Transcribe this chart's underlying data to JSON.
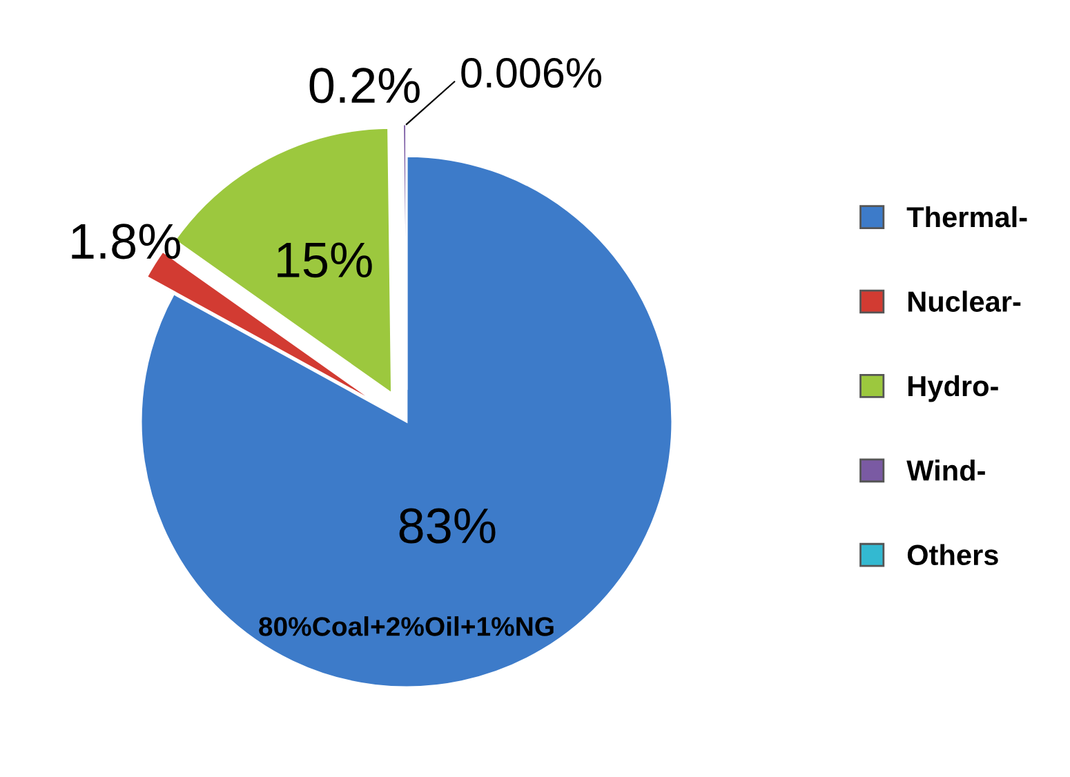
{
  "chart_data": {
    "type": "pie",
    "categories": [
      "Thermal-",
      "Nuclear-",
      "Hydro-",
      "Wind-",
      "Others"
    ],
    "values": [
      83,
      1.8,
      15,
      0.2,
      0.006
    ],
    "colors": [
      "#3d7bc9",
      "#d23b32",
      "#9cc83e",
      "#7a5aa3",
      "#33b9d1"
    ],
    "value_labels": [
      "83%",
      "1.8%",
      "15%",
      "0.2%",
      "0.006%"
    ],
    "annotations": [
      "80%Coal+2%Oil+1%NG"
    ],
    "legend": "right"
  }
}
